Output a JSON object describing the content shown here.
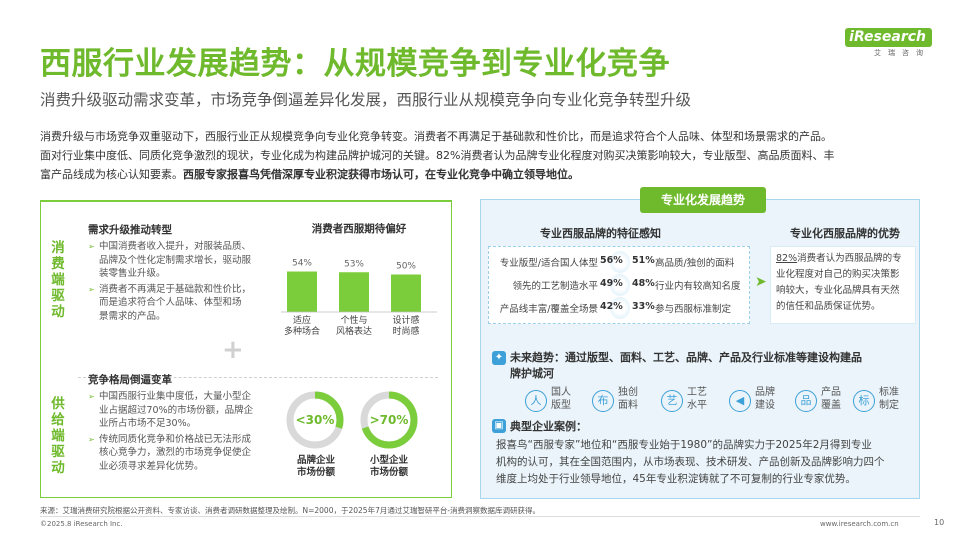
{
  "logo": {
    "brand": "iResearch",
    "cn": "艾瑞咨询"
  },
  "title": "西服行业发展趋势：从规模竞争到专业化竞争",
  "subtitle": "消费升级驱动需求变革，市场竞争倒逼差异化发展，西服行业从规模竞争向专业化竞争转型升级",
  "intro": {
    "line1": "消费升级与市场竞争双重驱动下，西服行业正从规模竞争向专业化竞争转变。消费者不再满足于基础款和性价比，而是追求符合个人品味、体型和场景需求的产品。",
    "line2": "面对行业集中度低、同质化竞争激烈的现状，专业化成为构建品牌护城河的关键。82%消费者认为品牌专业化程度对购买决策影响较大，专业版型、高品质面料、丰",
    "line3a": "富产品线成为核心认知要素。",
    "line3b": "西服专家报喜鸟凭借深厚专业积淀获得市场认可，在专业化竞争中确立领导地位。"
  },
  "left": {
    "demand_tag": "消费端驱动",
    "demand_title": "需求升级推动转型",
    "demand_b1": [
      "中国消费者收入提升，对服装品质、",
      "品牌及个性化定制需求增长，驱动服",
      "装零售业升级。"
    ],
    "demand_b2": [
      "消费者不再满足于基础款和性价比，",
      "而是追求符合个人品味、体型和场",
      "景需求的产品。"
    ],
    "supply_tag": "供给端驱动",
    "supply_title": "竞争格局倒逼变革",
    "supply_b1": [
      "中国西服行业集中度低，大量小型企",
      "业占据超过70%的市场份额，品牌企",
      "业所占市场不足30%。"
    ],
    "supply_b2": [
      "传统同质化竞争和价格战已无法形成",
      "核心竞争力，激烈的市场竞争促使企",
      "业必须寻求差异化优势。"
    ],
    "ring1": {
      "value": "<30%",
      "share": 0.3,
      "label": [
        "品牌企业",
        "市场份额"
      ]
    },
    "ring2": {
      "value": ">70%",
      "share": 0.7,
      "label": [
        "小型企业",
        "市场份额"
      ]
    }
  },
  "chart_data": {
    "type": "bar",
    "title": "消费者西服期待偏好",
    "categories": [
      [
        "适应",
        "多种场合"
      ],
      [
        "个性与",
        "风格表达"
      ],
      [
        "设计感",
        "时尚感"
      ]
    ],
    "values": [
      54,
      53,
      50
    ],
    "value_labels": [
      "54%",
      "53%",
      "50%"
    ],
    "unit": "%",
    "color": "#7ccd3b"
  },
  "right": {
    "tab": "专业化发展趋势",
    "feat_title": "专业西服品牌的特征感知",
    "adv_title": "专业化西服品牌的优势",
    "features": [
      {
        "l": "专业版型/适合国人体型",
        "lp": "56%",
        "rp": "51%",
        "r": "高品质/独创的面料"
      },
      {
        "l": "领先的工艺制造水平",
        "lp": "49%",
        "rp": "48%",
        "r": "行业内有较高知名度"
      },
      {
        "l": "产品线丰富/覆盖全场景",
        "lp": "42%",
        "rp": "33%",
        "r": "参与西服标准制定"
      }
    ],
    "adv_lines": [
      "82%消费者认为西服品牌的专",
      "业化程度对自己的购买决策影",
      "响较大，专业化品牌具有天然",
      "的信任和品质保证优势。"
    ],
    "adv_underline": "82%",
    "future": [
      "未来趋势：通过版型、面料、工艺、品牌、产品及行业标准等建设构建品",
      "牌护城河"
    ],
    "icons": [
      {
        "n": "people-icon",
        "g": "人",
        "l": [
          "国人",
          "版型"
        ]
      },
      {
        "n": "fabric-icon",
        "g": "布",
        "l": [
          "独创",
          "面料"
        ]
      },
      {
        "n": "craft-icon",
        "g": "艺",
        "l": [
          "工艺",
          "水平"
        ]
      },
      {
        "n": "megaphone-icon",
        "g": "◀",
        "l": [
          "品牌",
          "建设"
        ]
      },
      {
        "n": "product-icon",
        "g": "品",
        "l": [
          "产品",
          "覆盖"
        ]
      },
      {
        "n": "standard-icon",
        "g": "标",
        "l": [
          "标准",
          "制定"
        ]
      }
    ],
    "case_title": "典型企业案例：",
    "case_lines": [
      "报喜鸟“西服专家”地位和“西服专业始于1980”的品牌实力于2025年2月得到专业",
      "机构的认可，其在全国范围内，从市场表现、技术研发、产品创新及品牌影响力四个",
      "维度上均处于行业领导地位，45年专业积淀铸就了不可复制的行业专家优势。"
    ]
  },
  "footer": {
    "source": "来源：艾瑞消费研究院根据公开资料、专家访谈、消费者调研数据整理及绘制。N=2000，于2025年7月通过艾瑞智研平台-消费洞察数据库调研获得。",
    "copyright": "©2025.8 iResearch Inc.",
    "site": "www.iresearch.com.cn",
    "page": "10"
  }
}
